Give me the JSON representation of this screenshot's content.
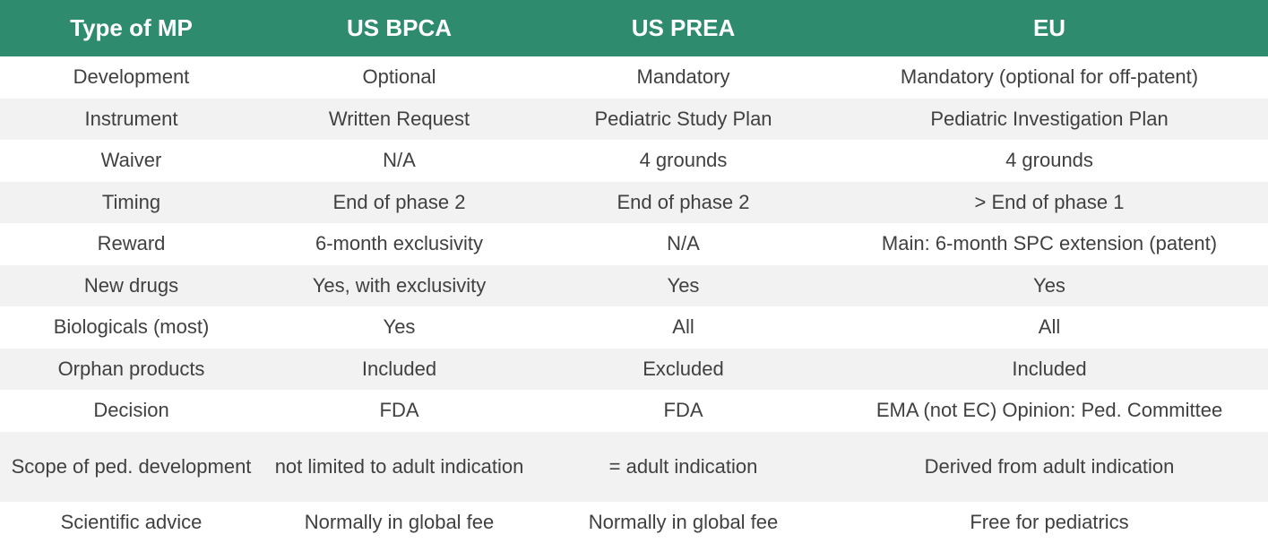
{
  "colors": {
    "header_bg": "#2e8b6e",
    "header_text": "#ffffff",
    "row_alt_bg": "#f2f2f2",
    "body_text": "#404040"
  },
  "table": {
    "headers": [
      "Type of MP",
      "US BPCA",
      "US PREA",
      "EU"
    ],
    "rows": [
      [
        "Development",
        "Optional",
        "Mandatory",
        "Mandatory (optional for off-patent)"
      ],
      [
        "Instrument",
        "Written Request",
        "Pediatric Study Plan",
        "Pediatric Investigation Plan"
      ],
      [
        "Waiver",
        "N/A",
        "4 grounds",
        "4 grounds"
      ],
      [
        "Timing",
        "End of phase 2",
        "End of phase 2",
        "> End of phase 1"
      ],
      [
        "Reward",
        "6-month exclusivity",
        "N/A",
        "Main: 6-month SPC extension (patent)"
      ],
      [
        "New drugs",
        "Yes, with exclusivity",
        "Yes",
        "Yes"
      ],
      [
        "Biologicals (most)",
        "Yes",
        "All",
        "All"
      ],
      [
        "Orphan products",
        "Included",
        "Excluded",
        "Included"
      ],
      [
        "Decision",
        "FDA",
        "FDA",
        "EMA (not EC) Opinion: Ped. Committee"
      ],
      [
        "Scope of ped. development",
        "not limited to adult indication",
        "= adult indication",
        "Derived from adult indication"
      ],
      [
        "Scientific advice",
        "Normally in global fee",
        "Normally in global fee",
        "Free for pediatrics"
      ]
    ]
  }
}
